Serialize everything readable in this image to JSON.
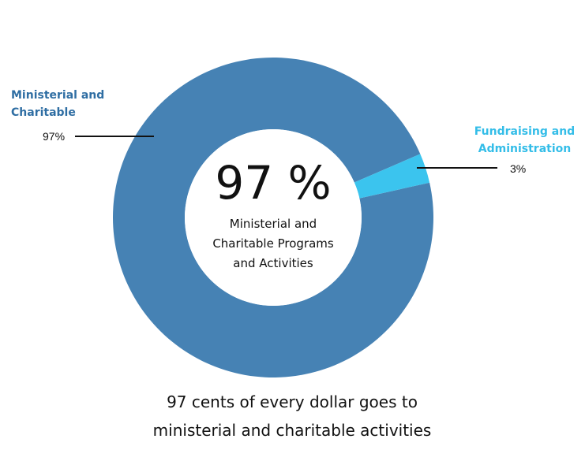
{
  "chart_data": {
    "type": "pie",
    "variant": "donut",
    "title": "",
    "categories": [
      "Ministerial and Charitable",
      "Fundraising and Administration"
    ],
    "values": [
      97,
      3
    ],
    "value_labels": [
      "97%",
      "3%"
    ],
    "colors": [
      "#4682b4",
      "#3bc4ee"
    ],
    "label_colors": [
      "#2f6ea3",
      "#33bde8"
    ],
    "center": {
      "value": "97 %",
      "caption": "Ministerial and\nCharitable Programs\nand Activities"
    },
    "footer": "97 cents of every dollar goes to\nministerial and charitable activities"
  }
}
